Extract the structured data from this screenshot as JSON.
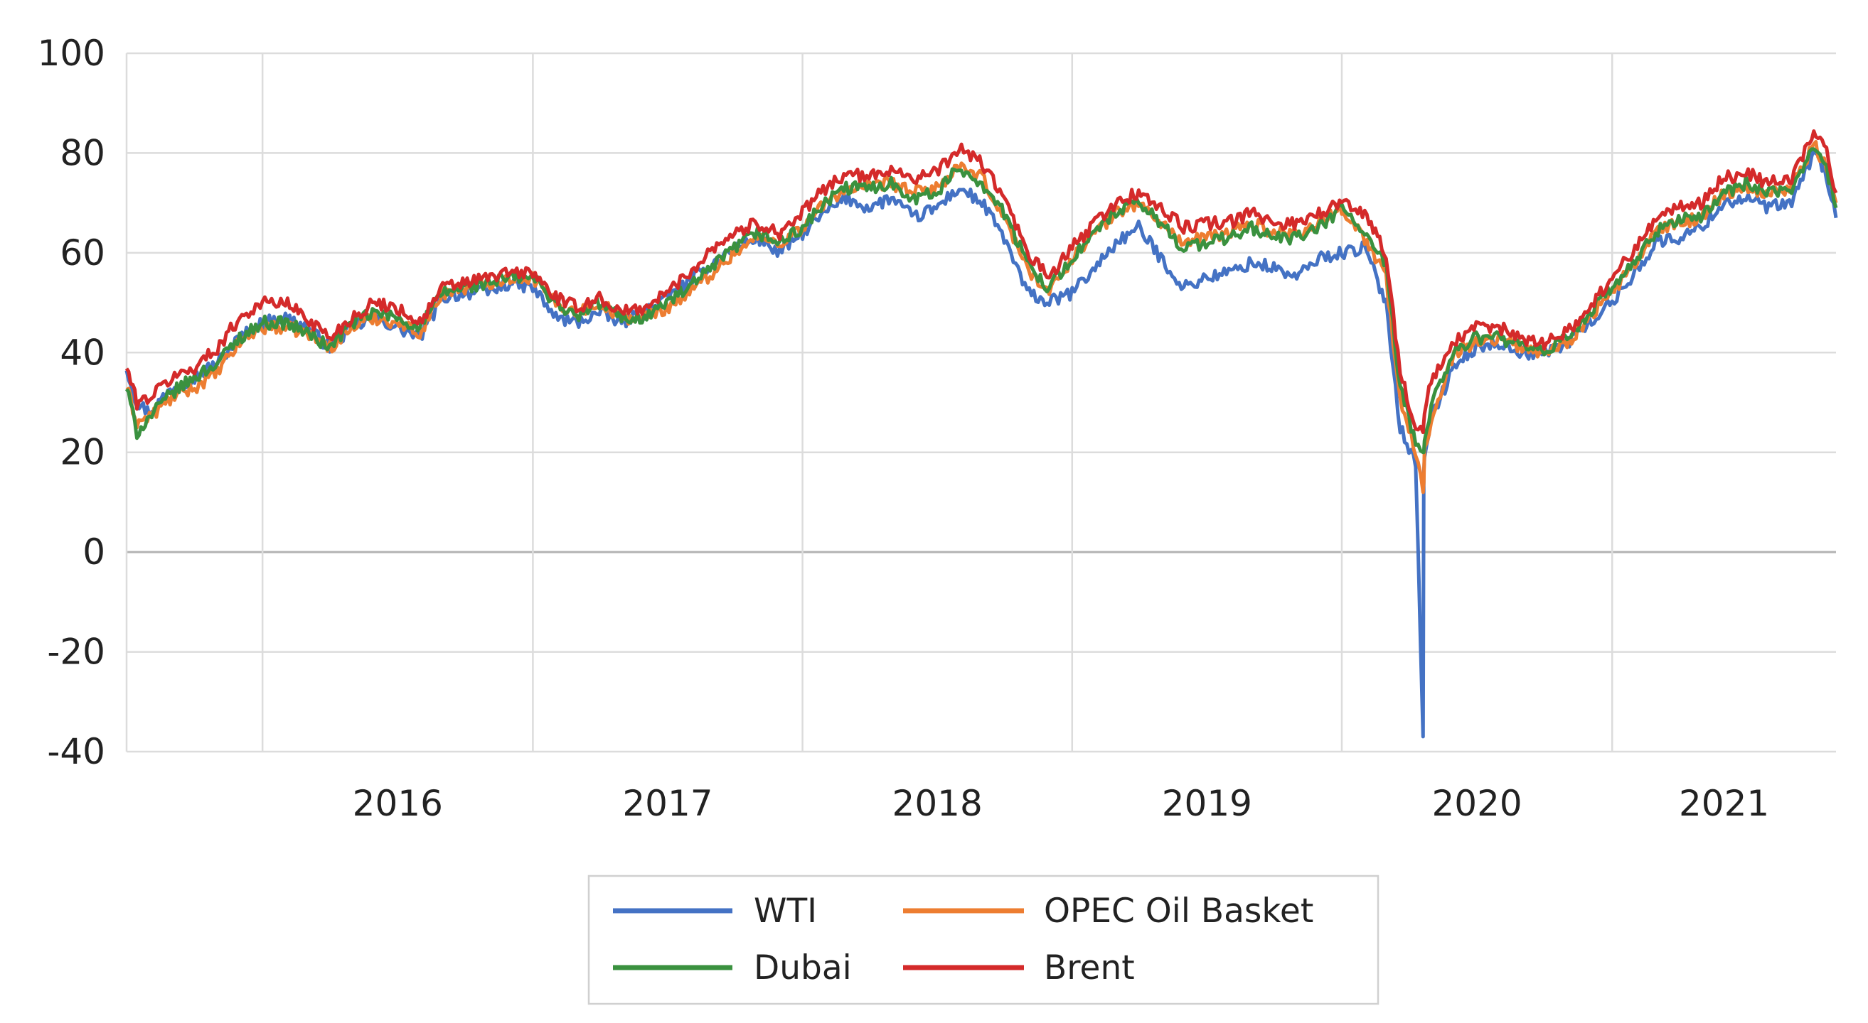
{
  "chart_data": {
    "type": "line",
    "title": "",
    "xlabel": "",
    "ylabel": "",
    "xlim": [
      "2015-07-01",
      "2021-10-31"
    ],
    "ylim": [
      -40,
      100
    ],
    "y_ticks": [
      100,
      80,
      60,
      40,
      20,
      0,
      -20,
      -40
    ],
    "x_year_labels": [
      "2016",
      "2017",
      "2018",
      "2019",
      "2020",
      "2021"
    ],
    "grid": true,
    "legend_position": "bottom-center",
    "x": [
      "2015-07-01",
      "2015-07-15",
      "2015-08-01",
      "2015-09-01",
      "2015-10-01",
      "2015-11-01",
      "2015-12-01",
      "2016-01-01",
      "2016-02-01",
      "2016-03-01",
      "2016-04-01",
      "2016-05-01",
      "2016-06-01",
      "2016-07-01",
      "2016-08-01",
      "2016-09-01",
      "2016-10-01",
      "2016-11-01",
      "2016-12-01",
      "2017-01-01",
      "2017-02-01",
      "2017-03-01",
      "2017-04-01",
      "2017-05-01",
      "2017-06-01",
      "2017-07-01",
      "2017-08-01",
      "2017-09-01",
      "2017-10-01",
      "2017-11-01",
      "2017-12-01",
      "2018-01-01",
      "2018-02-01",
      "2018-03-01",
      "2018-04-01",
      "2018-05-01",
      "2018-06-01",
      "2018-07-01",
      "2018-08-01",
      "2018-09-01",
      "2018-10-01",
      "2018-11-01",
      "2018-12-01",
      "2019-01-01",
      "2019-02-01",
      "2019-03-01",
      "2019-04-01",
      "2019-05-01",
      "2019-06-01",
      "2019-07-01",
      "2019-08-01",
      "2019-09-01",
      "2019-10-01",
      "2019-11-01",
      "2019-12-01",
      "2020-01-01",
      "2020-02-01",
      "2020-03-01",
      "2020-03-20",
      "2020-04-10",
      "2020-04-20",
      "2020-04-21",
      "2020-04-22",
      "2020-05-01",
      "2020-06-01",
      "2020-07-01",
      "2020-08-01",
      "2020-09-01",
      "2020-10-01",
      "2020-11-01",
      "2020-12-01",
      "2021-01-01",
      "2021-02-01",
      "2021-03-01",
      "2021-04-01",
      "2021-05-01",
      "2021-06-01",
      "2021-07-01",
      "2021-08-01",
      "2021-09-01",
      "2021-10-01",
      "2021-10-15",
      "2021-10-31"
    ],
    "series": [
      {
        "name": "WTI",
        "color": "#4472c4",
        "values": [
          37,
          30,
          28,
          33,
          35,
          38,
          43,
          46,
          47,
          45,
          41,
          45,
          47,
          45,
          43,
          51,
          52,
          52,
          54,
          53,
          47,
          46,
          48,
          46,
          48,
          51,
          54,
          58,
          61,
          63,
          60,
          64,
          68,
          71,
          69,
          71,
          67,
          69,
          73,
          70,
          63,
          52,
          50,
          52,
          57,
          62,
          65,
          59,
          53,
          55,
          56,
          58,
          57,
          55,
          59,
          60,
          61,
          50,
          25,
          18,
          -37,
          16,
          20,
          27,
          37,
          41,
          42,
          40,
          40,
          42,
          46,
          50,
          56,
          62,
          63,
          65,
          70,
          71,
          69,
          70,
          80,
          77,
          67
        ]
      },
      {
        "name": "OPEC Oil Basket",
        "color": "#ed7d31",
        "values": [
          33,
          26,
          27,
          31,
          33,
          36,
          42,
          45,
          45,
          44,
          41,
          45,
          47,
          46,
          44,
          52,
          53,
          54,
          55,
          55,
          50,
          48,
          50,
          47,
          47,
          49,
          52,
          56,
          60,
          63,
          62,
          65,
          70,
          73,
          73,
          74,
          72,
          73,
          77,
          75,
          67,
          57,
          52,
          59,
          64,
          68,
          70,
          66,
          62,
          63,
          64,
          66,
          64,
          64,
          66,
          69,
          63,
          55,
          30,
          20,
          12,
          14,
          20,
          27,
          40,
          42,
          43,
          41,
          40,
          42,
          47,
          52,
          58,
          64,
          66,
          67,
          72,
          73,
          72,
          73,
          82,
          78,
          70
        ]
      },
      {
        "name": "Dubai",
        "color": "#3a913f",
        "values": [
          33,
          24,
          27,
          32,
          35,
          38,
          43,
          46,
          46,
          44,
          41,
          46,
          48,
          47,
          45,
          52,
          53,
          54,
          55,
          55,
          50,
          47,
          50,
          47,
          47,
          50,
          53,
          57,
          61,
          64,
          62,
          65,
          70,
          73,
          73,
          74,
          71,
          72,
          77,
          74,
          68,
          58,
          53,
          59,
          64,
          68,
          70,
          66,
          61,
          62,
          63,
          65,
          63,
          63,
          65,
          69,
          64,
          57,
          33,
          22,
          20,
          20,
          22,
          30,
          40,
          43,
          43,
          41,
          40,
          43,
          48,
          53,
          58,
          64,
          67,
          67,
          72,
          74,
          72,
          72,
          82,
          79,
          69
        ]
      },
      {
        "name": "Brent",
        "color": "#d42a2a",
        "values": [
          37,
          30,
          31,
          35,
          37,
          41,
          47,
          50,
          50,
          47,
          43,
          47,
          50,
          49,
          46,
          53,
          54,
          55,
          56,
          56,
          51,
          49,
          51,
          48,
          49,
          52,
          56,
          61,
          64,
          66,
          64,
          68,
          73,
          76,
          75,
          77,
          75,
          76,
          81,
          78,
          71,
          60,
          55,
          61,
          66,
          70,
          72,
          69,
          65,
          66,
          66,
          68,
          66,
          66,
          68,
          70,
          68,
          60,
          36,
          25,
          24,
          26,
          28,
          34,
          42,
          45,
          45,
          43,
          42,
          44,
          49,
          55,
          61,
          67,
          69,
          70,
          75,
          76,
          74,
          75,
          84,
          82,
          72
        ]
      }
    ]
  }
}
